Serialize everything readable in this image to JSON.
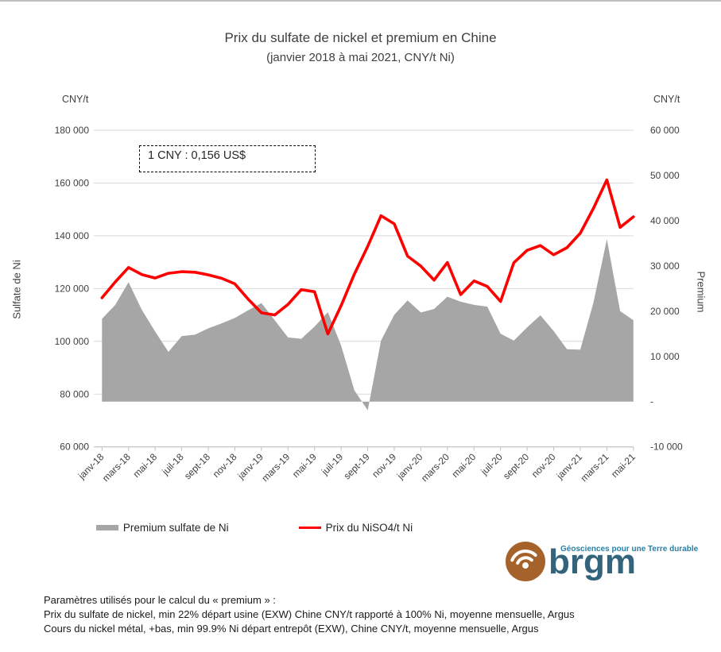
{
  "title": "Prix du sulfate de nickel et premium en Chine",
  "subtitle": "(janvier 2018 à mai 2021, CNY/t Ni)",
  "left_axis_unit": "CNY/t",
  "right_axis_unit": "CNY/t",
  "left_axis_title": "Sulfate de Ni",
  "right_axis_title": "Premium",
  "annotation": "1 CNY : 0,156 US$",
  "legend": {
    "area_label": "Premium sulfate de Ni",
    "line_label": "Prix du NiSO4/t Ni"
  },
  "logo": {
    "tagline": "Géosciences pour une Terre durable",
    "wordmark": "brgm",
    "circle_color": "#a5622a",
    "wordmark_color": "#34647c",
    "tagline_color": "#2680a6"
  },
  "footnotes": [
    "Paramètres utilisés pour le calcul du « premium » :",
    "Prix du sulfate de nickel, min 22% départ usine (EXW) Chine CNY/t rapporté à 100% Ni, moyenne mensuelle, Argus",
    "Cours du nickel métal, +bas, min 99.9% Ni départ entrepôt (EXW), Chine CNY/t, moyenne mensuelle,  Argus"
  ],
  "chart_data": {
    "type": "combo",
    "categories": [
      "janv-18",
      "févr-18",
      "mars-18",
      "avr-18",
      "mai-18",
      "juin-18",
      "juil-18",
      "août-18",
      "sept-18",
      "oct-18",
      "nov-18",
      "déc-18",
      "janv-19",
      "févr-19",
      "mars-19",
      "avr-19",
      "mai-19",
      "juin-19",
      "juil-19",
      "août-19",
      "sept-19",
      "oct-19",
      "nov-19",
      "déc-19",
      "janv-20",
      "févr-20",
      "mars-20",
      "avr-20",
      "mai-20",
      "juin-20",
      "juil-20",
      "août-20",
      "sept-20",
      "oct-20",
      "nov-20",
      "déc-20",
      "janv-21",
      "févr-21",
      "mars-21",
      "avr-21",
      "mai-21"
    ],
    "x_tick_labels": [
      "janv-18",
      "mars-18",
      "mai-18",
      "juil-18",
      "sept-18",
      "nov-18",
      "janv-19",
      "mars-19",
      "mai-19",
      "juil-19",
      "sept-19",
      "nov-19",
      "janv-20",
      "mars-20",
      "mai-20",
      "juil-20",
      "sept-20",
      "nov-20",
      "janv-21",
      "mars-21",
      "mai-21"
    ],
    "series": [
      {
        "name": "Premium sulfate de Ni",
        "type": "area",
        "axis": "right",
        "color": "#a6a6a6",
        "values": [
          18300,
          21400,
          26400,
          20300,
          15500,
          11000,
          14500,
          14800,
          16200,
          17300,
          18500,
          20200,
          21800,
          18000,
          14200,
          13900,
          16600,
          19800,
          12400,
          2500,
          -1900,
          13500,
          19200,
          22400,
          19700,
          20500,
          23200,
          22100,
          21400,
          21000,
          15000,
          13500,
          16400,
          19100,
          15600,
          11600,
          11500,
          22000,
          35900,
          20000,
          18000
        ]
      },
      {
        "name": "Prix du NiSO4/t Ni",
        "type": "line",
        "axis": "left",
        "color": "#ff0000",
        "values": [
          116500,
          122500,
          128000,
          125300,
          124000,
          125800,
          126400,
          126200,
          125200,
          123900,
          121800,
          116000,
          110800,
          110000,
          114000,
          119600,
          118800,
          102800,
          113500,
          125500,
          136000,
          147600,
          144500,
          132300,
          128500,
          123200,
          129900,
          117700,
          122900,
          120800,
          115100,
          129800,
          134500,
          136300,
          132800,
          135500,
          141000,
          150500,
          161200,
          143200,
          147200
        ]
      }
    ],
    "left_axis": {
      "min": 60000,
      "max": 180000,
      "step": 20000,
      "tick_labels": [
        "180 000",
        "160 000",
        "140 000",
        "120 000",
        "100 000",
        "80 000",
        "60 000"
      ]
    },
    "right_axis": {
      "min": -10000,
      "max": 60000,
      "step": 10000,
      "tick_labels": [
        "60 000",
        "50 000",
        "40 000",
        "30 000",
        "20 000",
        "10 000",
        "-",
        "-10 000"
      ]
    },
    "grid": true,
    "gridline_color": "#d9d9d9",
    "axis_line_color": "#bfbfbf",
    "legend_position": "bottom"
  }
}
